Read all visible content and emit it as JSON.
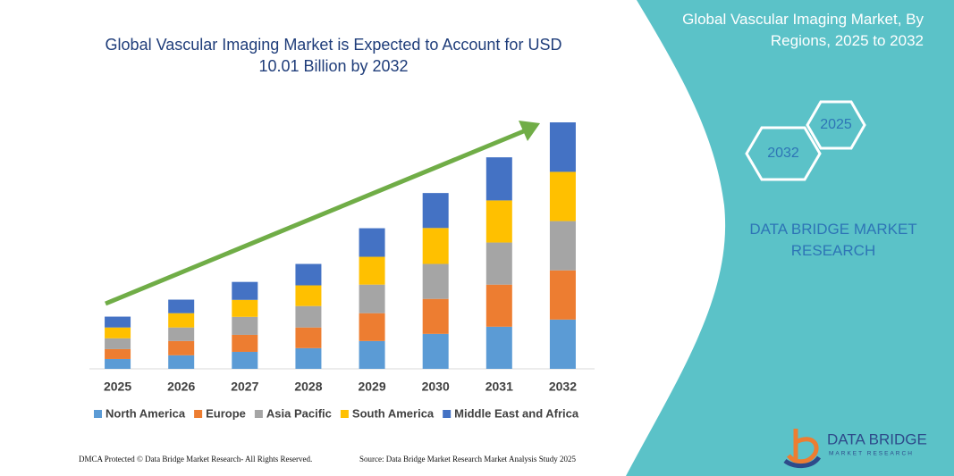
{
  "chart_data": {
    "type": "stacked_bar",
    "title": "Global Vascular Imaging Market is Expected to Account for USD 10.01 Billion by 2032",
    "categories": [
      "2025",
      "2026",
      "2027",
      "2028",
      "2029",
      "2030",
      "2031",
      "2032"
    ],
    "series": [
      {
        "name": "North America",
        "color": "#5b9bd5",
        "values": [
          0.4,
          0.55,
          0.69,
          0.84,
          1.13,
          1.42,
          1.71,
          2.0
        ]
      },
      {
        "name": "Europe",
        "color": "#ed7d31",
        "values": [
          0.4,
          0.58,
          0.69,
          0.84,
          1.13,
          1.42,
          1.71,
          2.0
        ]
      },
      {
        "name": "Asia Pacific",
        "color": "#a5a5a5",
        "values": [
          0.44,
          0.55,
          0.73,
          0.87,
          1.16,
          1.42,
          1.71,
          2.0
        ]
      },
      {
        "name": "South America",
        "color": "#ffc000",
        "values": [
          0.44,
          0.58,
          0.69,
          0.84,
          1.13,
          1.46,
          1.71,
          2.0
        ]
      },
      {
        "name": "Middle East and Africa",
        "color": "#4472c4",
        "values": [
          0.44,
          0.55,
          0.73,
          0.87,
          1.16,
          1.42,
          1.75,
          2.01
        ]
      }
    ]
  },
  "panel": {
    "title": "Global Vascular Imaging Market, By Regions, 2025 to 2032",
    "hex_top": "2025",
    "hex_bottom": "2032",
    "brand": "DATA BRIDGE MARKET RESEARCH"
  },
  "logo": {
    "name": "DATA BRIDGE",
    "tagline": "MARKET RESEARCH"
  },
  "footer": {
    "left": "DMCA Protected © Data Bridge Market Research- All Rights Reserved.",
    "right": "Source: Data Bridge Market Research  Market Analysis Study 2025"
  }
}
